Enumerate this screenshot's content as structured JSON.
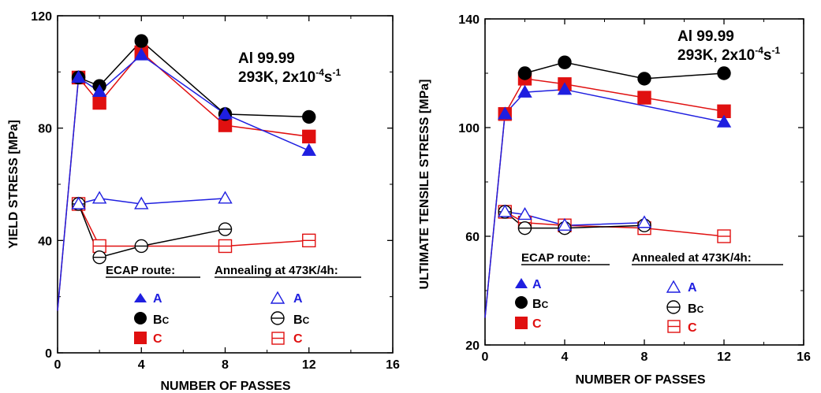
{
  "chart_data": [
    {
      "type": "line",
      "ylabel": "YIELD STRESS [MPa]",
      "xlabel": "NUMBER OF PASSES",
      "xlim": [
        0,
        16
      ],
      "ylim": [
        0,
        120
      ],
      "xticks": [
        "0",
        "4",
        "8",
        "12",
        "16"
      ],
      "yticks": [
        "0",
        "40",
        "80",
        "120"
      ],
      "annotation": {
        "material": "Al 99.99",
        "conditions": "293K, 2x10",
        "rate_exp": "-4",
        "rate_unit": "s",
        "unit_exp": "-1"
      },
      "legend": {
        "left_title": "ECAP route:",
        "right_title": "Annealing at 473K/4h:",
        "labels": {
          "A": "A",
          "Bc": "B",
          "Bc_sub": "C",
          "C": "C"
        }
      },
      "colors": {
        "A": "#1f1fe0",
        "Bc": "#000000",
        "C": "#e01010"
      },
      "series": [
        {
          "route": "A",
          "annealed": false,
          "points": [
            [
              0,
              15
            ],
            [
              1,
              98
            ],
            [
              2,
              93
            ],
            [
              4,
              106
            ],
            [
              8,
              85
            ],
            [
              12,
              72
            ]
          ]
        },
        {
          "route": "Bc",
          "annealed": false,
          "points": [
            [
              1,
              98
            ],
            [
              2,
              95
            ],
            [
              4,
              111
            ],
            [
              8,
              85
            ],
            [
              12,
              84
            ]
          ]
        },
        {
          "route": "C",
          "annealed": false,
          "points": [
            [
              0,
              15
            ],
            [
              1,
              98
            ],
            [
              2,
              89
            ],
            [
              4,
              107
            ],
            [
              8,
              81
            ],
            [
              12,
              77
            ]
          ]
        },
        {
          "route": "A",
          "annealed": true,
          "points": [
            [
              1,
              53
            ],
            [
              2,
              55
            ],
            [
              4,
              53
            ],
            [
              8,
              55
            ]
          ]
        },
        {
          "route": "Bc",
          "annealed": true,
          "points": [
            [
              1,
              53
            ],
            [
              2,
              34
            ],
            [
              4,
              38
            ],
            [
              8,
              44
            ]
          ]
        },
        {
          "route": "C",
          "annealed": true,
          "points": [
            [
              1,
              53
            ],
            [
              2,
              38
            ],
            [
              8,
              38
            ],
            [
              12,
              40
            ]
          ]
        }
      ]
    },
    {
      "type": "line",
      "ylabel": "ULTIMATE TENSILE STRESS [MPa]",
      "xlabel": "NUMBER OF PASSES",
      "xlim": [
        0,
        16
      ],
      "ylim": [
        20,
        140
      ],
      "xticks": [
        "0",
        "4",
        "8",
        "12",
        "16"
      ],
      "yticks": [
        "20",
        "60",
        "100",
        "140"
      ],
      "annotation": {
        "material": "Al 99.99",
        "conditions": "293K, 2x10",
        "rate_exp": "-4",
        "rate_unit": "s",
        "unit_exp": "-1"
      },
      "legend": {
        "left_title": "ECAP route:",
        "right_title": "Annealed at 473K/4h:",
        "labels": {
          "A": "A",
          "Bc": "B",
          "Bc_sub": "C",
          "C": "C"
        }
      },
      "colors": {
        "A": "#1f1fe0",
        "Bc": "#000000",
        "C": "#e01010"
      },
      "series": [
        {
          "route": "A",
          "annealed": false,
          "points": [
            [
              0,
              30
            ],
            [
              1,
              105
            ],
            [
              2,
              113
            ],
            [
              4,
              114
            ],
            [
              12,
              102
            ]
          ]
        },
        {
          "route": "Bc",
          "annealed": false,
          "points": [
            [
              2,
              120
            ],
            [
              4,
              124
            ],
            [
              8,
              118
            ],
            [
              12,
              120
            ]
          ]
        },
        {
          "route": "C",
          "annealed": false,
          "points": [
            [
              0,
              30
            ],
            [
              1,
              105
            ],
            [
              2,
              118
            ],
            [
              4,
              116
            ],
            [
              8,
              111
            ],
            [
              12,
              106
            ]
          ]
        },
        {
          "route": "A",
          "annealed": true,
          "points": [
            [
              1,
              69
            ],
            [
              2,
              68
            ],
            [
              4,
              64
            ],
            [
              8,
              65
            ]
          ]
        },
        {
          "route": "Bc",
          "annealed": true,
          "points": [
            [
              1,
              69
            ],
            [
              2,
              63
            ],
            [
              4,
              63
            ],
            [
              8,
              64
            ]
          ]
        },
        {
          "route": "C",
          "annealed": true,
          "points": [
            [
              1,
              69
            ],
            [
              2,
              65
            ],
            [
              4,
              64
            ],
            [
              8,
              63
            ],
            [
              12,
              60
            ]
          ]
        }
      ]
    }
  ]
}
